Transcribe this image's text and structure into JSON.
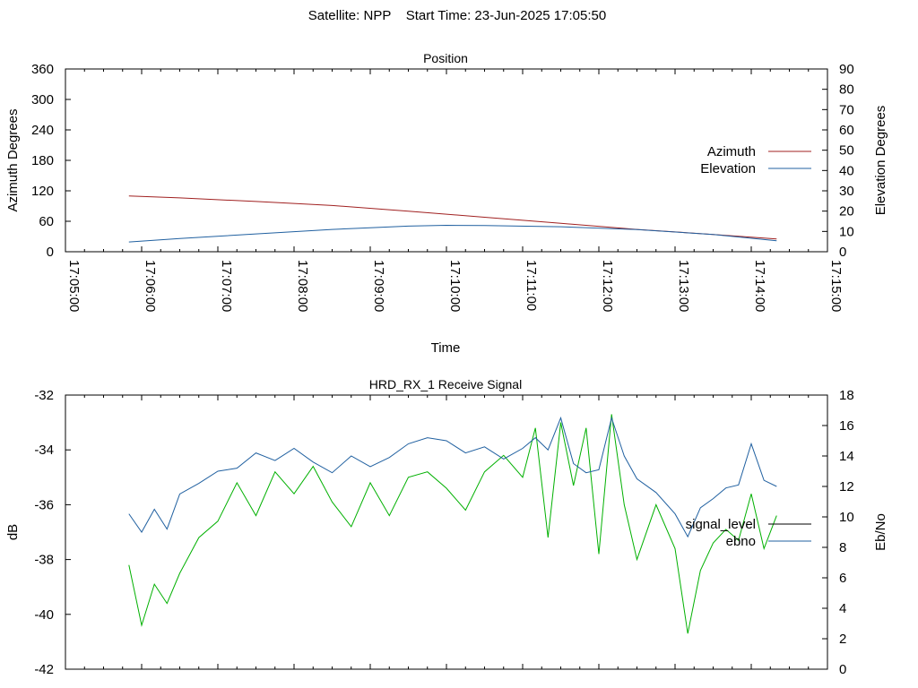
{
  "header": {
    "title": "Satellite: NPP    Start Time: 23-Jun-2025 17:05:50"
  },
  "colors": {
    "azimuth": "#a02020",
    "elevation": "#2060a0",
    "signal_level": "#00b000",
    "ebno": "#2060a0",
    "legend_signal_level": "#000000"
  },
  "chart_data": [
    {
      "type": "line",
      "title": "Position",
      "xlabel": "Time",
      "ylabel": "Azimuth Degrees",
      "y2label": "Elevation Degrees",
      "xlim": [
        "17:05:00",
        "17:15:00"
      ],
      "ylim": [
        0,
        360
      ],
      "y2lim": [
        0,
        90
      ],
      "x_ticks": [
        "17:05:00",
        "17:06:00",
        "17:07:00",
        "17:08:00",
        "17:09:00",
        "17:10:00",
        "17:11:00",
        "17:12:00",
        "17:13:00",
        "17:14:00",
        "17:15:00"
      ],
      "y_ticks": [
        0,
        60,
        120,
        180,
        240,
        300,
        360
      ],
      "y2_ticks": [
        0,
        10,
        20,
        30,
        40,
        50,
        60,
        70,
        80,
        90
      ],
      "legend_position": "right",
      "series": [
        {
          "name": "Azimuth",
          "axis": "y",
          "x": [
            "17:05:50",
            "17:06:30",
            "17:07:30",
            "17:08:30",
            "17:09:30",
            "17:10:30",
            "17:11:30",
            "17:12:30",
            "17:13:30",
            "17:14:20"
          ],
          "values": [
            110,
            106,
            99,
            91,
            80,
            68,
            56,
            44,
            34,
            25
          ]
        },
        {
          "name": "Elevation",
          "axis": "y2",
          "x": [
            "17:05:50",
            "17:06:30",
            "17:07:30",
            "17:08:30",
            "17:09:30",
            "17:10:00",
            "17:10:30",
            "17:11:30",
            "17:12:30",
            "17:13:30",
            "17:14:20"
          ],
          "values": [
            4.8,
            6.5,
            8.8,
            11,
            12.6,
            13,
            12.9,
            12.3,
            10.9,
            8.5,
            5.4
          ]
        }
      ]
    },
    {
      "type": "line",
      "title": "HRD_RX_1 Receive Signal",
      "ylabel": "dB",
      "y2label": "Eb/No",
      "xlim": [
        "17:05:00",
        "17:15:00"
      ],
      "ylim": [
        -42,
        -32
      ],
      "y2lim": [
        0,
        18
      ],
      "y_ticks": [
        -42,
        -40,
        -38,
        -36,
        -34,
        -32
      ],
      "y2_ticks": [
        0,
        2,
        4,
        6,
        8,
        10,
        12,
        14,
        16,
        18
      ],
      "legend_position": "right",
      "series": [
        {
          "name": "signal_level",
          "axis": "y",
          "x": [
            "17:05:50",
            "17:06:00",
            "17:06:10",
            "17:06:20",
            "17:06:30",
            "17:06:45",
            "17:07:00",
            "17:07:15",
            "17:07:30",
            "17:07:45",
            "17:08:00",
            "17:08:15",
            "17:08:30",
            "17:08:45",
            "17:09:00",
            "17:09:15",
            "17:09:30",
            "17:09:45",
            "17:10:00",
            "17:10:15",
            "17:10:30",
            "17:10:45",
            "17:11:00",
            "17:11:10",
            "17:11:20",
            "17:11:30",
            "17:11:40",
            "17:11:50",
            "17:12:00",
            "17:12:10",
            "17:12:20",
            "17:12:30",
            "17:12:45",
            "17:13:00",
            "17:13:10",
            "17:13:20",
            "17:13:30",
            "17:13:40",
            "17:13:50",
            "17:14:00",
            "17:14:10",
            "17:14:20"
          ],
          "values": [
            -38.2,
            -40.4,
            -38.9,
            -39.6,
            -38.5,
            -37.2,
            -36.6,
            -35.2,
            -36.4,
            -34.8,
            -35.6,
            -34.6,
            -35.9,
            -36.8,
            -35.2,
            -36.4,
            -35.0,
            -34.8,
            -35.4,
            -36.2,
            -34.8,
            -34.2,
            -35.0,
            -33.2,
            -37.2,
            -33.0,
            -35.3,
            -33.2,
            -37.8,
            -32.7,
            -36.0,
            -38.0,
            -36.0,
            -37.6,
            -40.7,
            -38.4,
            -37.4,
            -36.9,
            -37.3,
            -35.6,
            -37.6,
            -36.4
          ]
        },
        {
          "name": "ebno",
          "axis": "y2",
          "x": [
            "17:05:50",
            "17:06:00",
            "17:06:10",
            "17:06:20",
            "17:06:30",
            "17:06:45",
            "17:07:00",
            "17:07:15",
            "17:07:30",
            "17:07:45",
            "17:08:00",
            "17:08:15",
            "17:08:30",
            "17:08:45",
            "17:09:00",
            "17:09:15",
            "17:09:30",
            "17:09:45",
            "17:10:00",
            "17:10:15",
            "17:10:30",
            "17:10:45",
            "17:11:00",
            "17:11:10",
            "17:11:20",
            "17:11:30",
            "17:11:40",
            "17:11:50",
            "17:12:00",
            "17:12:10",
            "17:12:20",
            "17:12:30",
            "17:12:45",
            "17:13:00",
            "17:13:10",
            "17:13:20",
            "17:13:30",
            "17:13:40",
            "17:13:50",
            "17:14:00",
            "17:14:10",
            "17:14:20"
          ],
          "values": [
            10.2,
            9.0,
            10.5,
            9.2,
            11.5,
            12.2,
            13.0,
            13.2,
            14.2,
            13.7,
            14.5,
            13.6,
            12.9,
            14.0,
            13.3,
            13.9,
            14.8,
            15.2,
            15.0,
            14.2,
            14.6,
            13.8,
            14.5,
            15.2,
            14.4,
            16.5,
            13.5,
            12.9,
            13.1,
            16.5,
            14.0,
            12.5,
            11.6,
            10.2,
            8.7,
            10.6,
            11.2,
            11.9,
            12.1,
            14.8,
            12.4,
            12.0
          ]
        }
      ]
    }
  ]
}
